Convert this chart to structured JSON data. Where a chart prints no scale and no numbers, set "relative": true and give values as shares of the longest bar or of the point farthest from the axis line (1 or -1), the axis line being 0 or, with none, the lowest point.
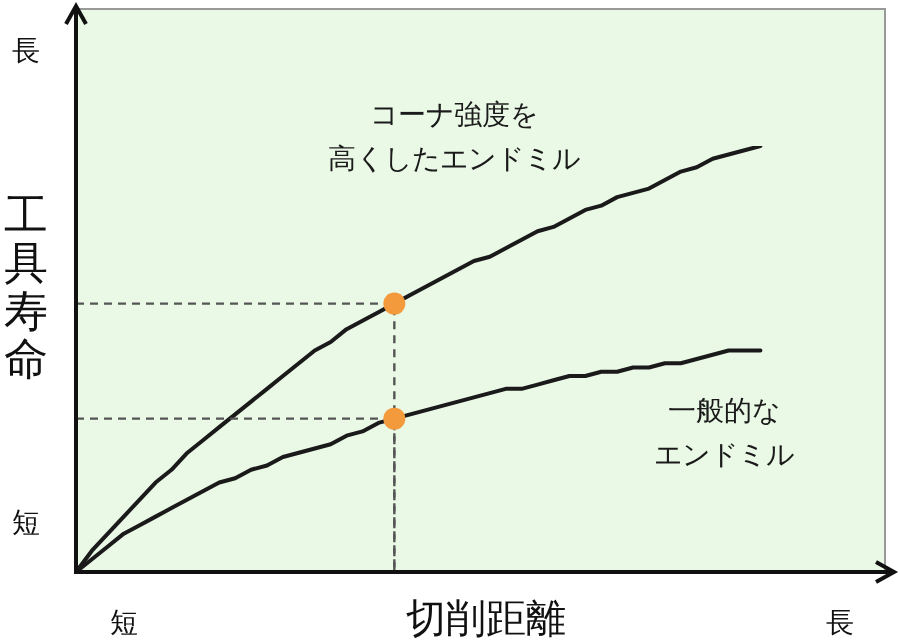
{
  "chart_data": {
    "type": "line",
    "relative": true,
    "categories": [
      null,
      null,
      null,
      "短",
      null,
      null,
      null,
      null,
      null,
      null,
      null,
      null,
      null,
      null,
      null,
      null,
      null,
      null,
      null,
      null,
      null,
      null,
      null,
      null,
      null,
      null,
      null,
      null,
      null,
      null,
      null,
      null,
      null,
      null,
      null,
      null,
      null,
      null,
      null,
      null,
      null,
      null,
      null,
      null,
      null,
      null,
      null,
      null,
      "長"
    ],
    "xlabel": "切削距離",
    "ylabel": "工具寿命",
    "annotations": [
      "長",
      "短"
    ],
    "series": [
      {
        "name": "コーナ強度を高くしたエンドミル",
        "color": "#1a1a1a",
        "values": [
          0,
          0.05,
          0.09,
          0.13,
          0.17,
          0.21,
          0.24,
          0.28,
          0.31,
          0.34,
          0.37,
          0.4,
          0.43,
          0.46,
          0.49,
          0.52,
          0.54,
          0.57,
          0.59,
          0.61,
          0.63,
          0.65,
          0.67,
          0.69,
          0.71,
          0.73,
          0.74,
          0.76,
          0.78,
          0.8,
          0.81,
          0.83,
          0.85,
          0.86,
          0.88,
          0.89,
          0.9,
          0.92,
          0.94,
          0.95,
          0.97,
          0.98,
          0.99,
          1,
          null,
          null,
          null,
          null,
          null
        ],
        "marker": "none",
        "line_style": "solid"
      },
      {
        "name": "一般的なエンドミル",
        "color": "#1a1a1a",
        "values": [
          0,
          0.03,
          0.06,
          0.09,
          0.11,
          0.13,
          0.15,
          0.17,
          0.19,
          0.21,
          0.22,
          0.24,
          0.25,
          0.27,
          0.28,
          0.29,
          0.3,
          0.32,
          0.33,
          0.35,
          0.36,
          0.37,
          0.38,
          0.39,
          0.4,
          0.41,
          0.42,
          0.43,
          0.43,
          0.44,
          0.45,
          0.46,
          0.46,
          0.47,
          0.47,
          0.48,
          0.48,
          0.49,
          0.49,
          0.5,
          0.51,
          0.52,
          0.52,
          0.52,
          null,
          null,
          null,
          null,
          null
        ],
        "marker": "none",
        "line_style": "solid"
      },
      {
        "type": "scatter",
        "color": "#f39a3c",
        "values": [
          null,
          null,
          null,
          null,
          null,
          null,
          null,
          null,
          null,
          null,
          null,
          null,
          null,
          null,
          null,
          null,
          null,
          null,
          null,
          null,
          0.63,
          null,
          null,
          null,
          null,
          null,
          null,
          null,
          null,
          null,
          null,
          null,
          null,
          null,
          null,
          null,
          null,
          null,
          null,
          null,
          null,
          null,
          null,
          null,
          null,
          null,
          null,
          null,
          null
        ],
        "marker": "circle",
        "line_style": "dashed"
      },
      {
        "type": "scatter",
        "color": "#f39a3c",
        "values": [
          null,
          null,
          null,
          null,
          null,
          null,
          null,
          null,
          null,
          null,
          null,
          null,
          null,
          null,
          null,
          null,
          null,
          null,
          null,
          null,
          0.36,
          null,
          null,
          null,
          null,
          null,
          null,
          null,
          null,
          null,
          null,
          null,
          null,
          null,
          null,
          null,
          null,
          null,
          null,
          null,
          null,
          null,
          null,
          null,
          null,
          null,
          null,
          null,
          null
        ],
        "marker": "circle",
        "line_style": "dashed"
      }
    ]
  }
}
